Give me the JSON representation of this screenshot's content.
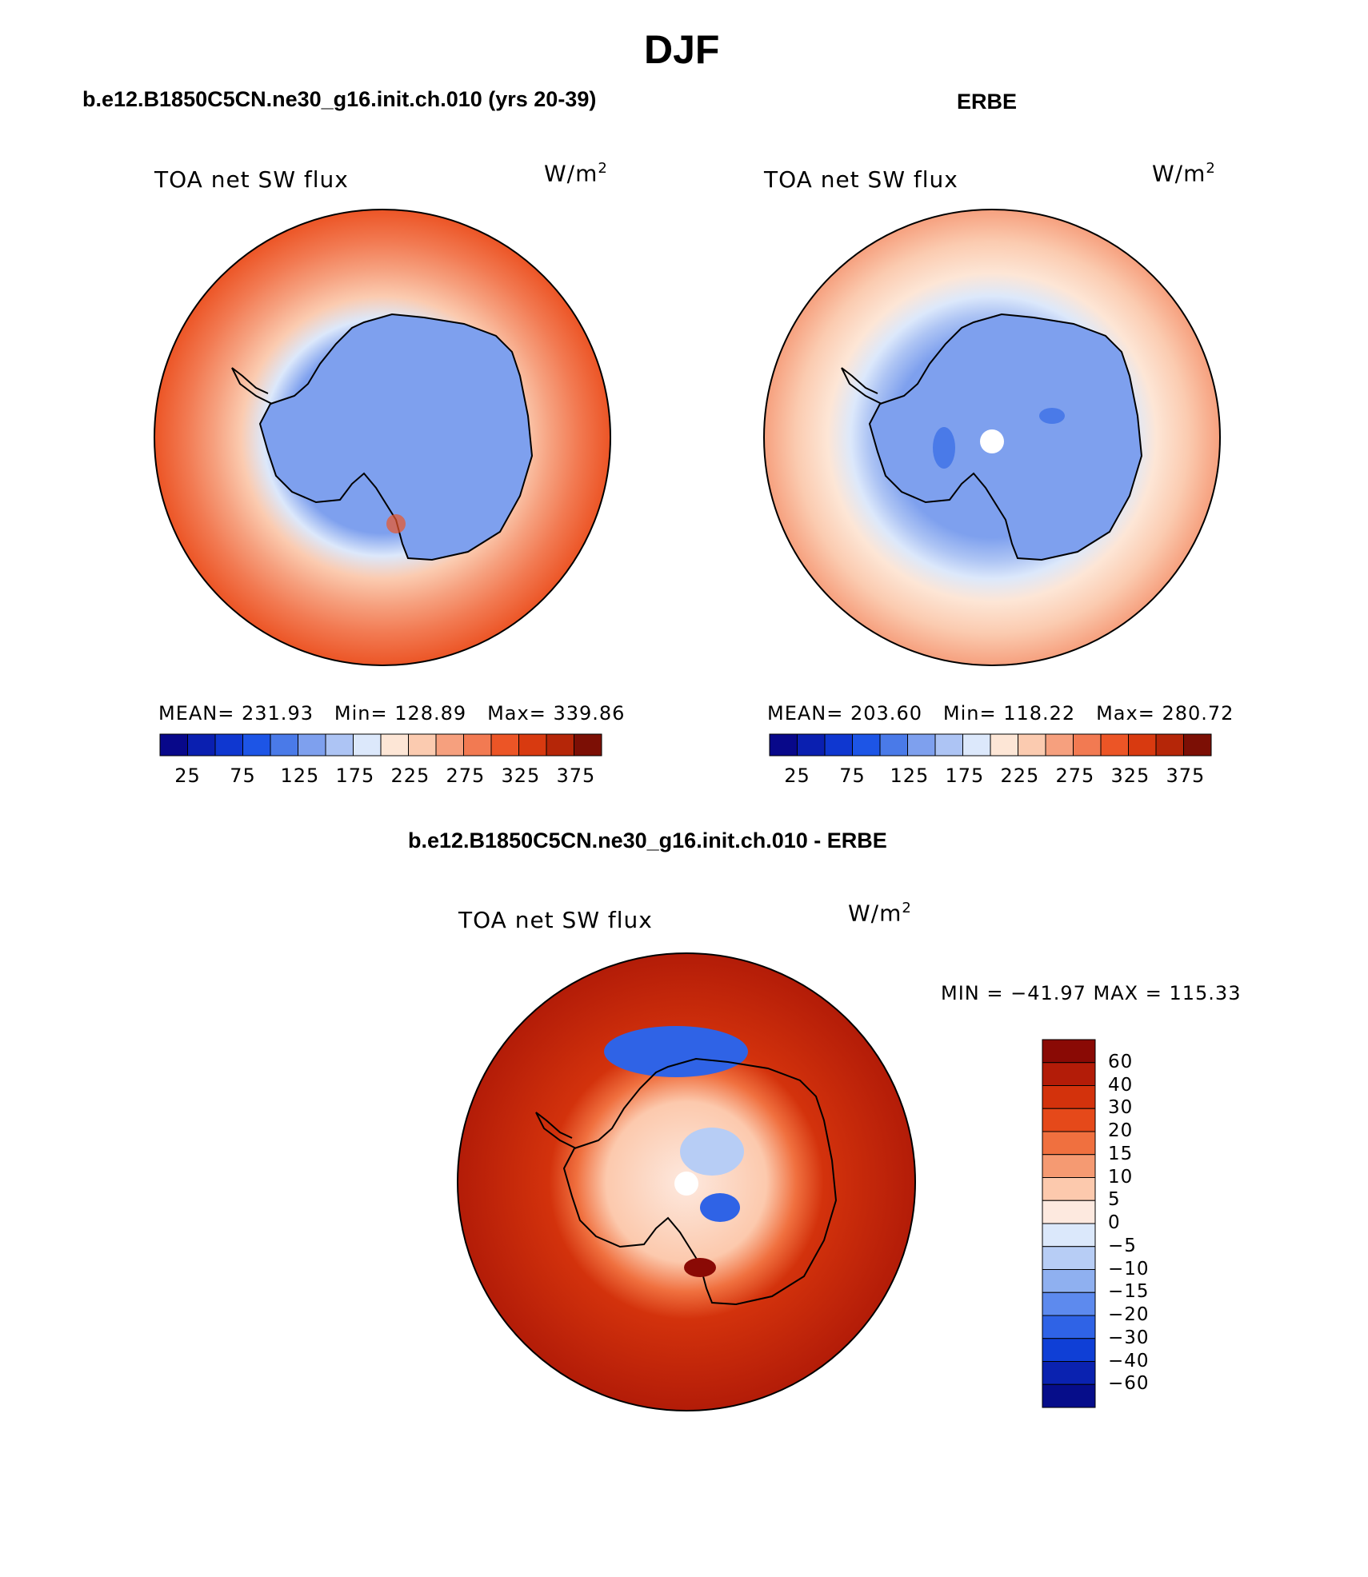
{
  "page_title": "DJF",
  "panels": [
    {
      "case_title": "b.e12.B1850C5CN.ne30_g16.init.ch.010 (yrs 20-39)",
      "variable": "TOA net SW flux",
      "units_base": "W/m",
      "units_exp": "2",
      "stats": {
        "mean_label": "MEAN=",
        "mean": "231.93",
        "min_label": "Min=",
        "min": "128.89",
        "max_label": "Max=",
        "max": "339.86"
      }
    },
    {
      "case_title": "ERBE",
      "variable": "TOA net SW flux",
      "units_base": "W/m",
      "units_exp": "2",
      "stats": {
        "mean_label": "MEAN=",
        "mean": "203.60",
        "min_label": "Min=",
        "min": "118.22",
        "max_label": "Max=",
        "max": "280.72"
      }
    }
  ],
  "abs_colorbar": {
    "colors": [
      "#08088a",
      "#0a1fb0",
      "#0f37d0",
      "#1d55e6",
      "#4a7ae8",
      "#7ea0ee",
      "#adc4f4",
      "#dce8fb",
      "#fde6d6",
      "#fbcbb0",
      "#f6a07e",
      "#f27a52",
      "#ec5526",
      "#d83a10",
      "#b52608",
      "#7c0f05"
    ],
    "tick_labels": [
      "25",
      "75",
      "125",
      "175",
      "225",
      "275",
      "325",
      "375"
    ]
  },
  "diff_panel": {
    "title": "b.e12.B1850C5CN.ne30_g16.init.ch.010 - ERBE",
    "variable": "TOA net SW flux",
    "units_base": "W/m",
    "units_exp": "2",
    "minmax_text": "MIN = −41.97  MAX = 115.33",
    "colorbar": {
      "colors_top_to_bottom": [
        "#8a0a05",
        "#b31c08",
        "#d3320c",
        "#e5491a",
        "#f0703f",
        "#f59a72",
        "#fcc9ad",
        "#fde9df",
        "#dbe8fb",
        "#b7cdf5",
        "#8fb0f0",
        "#5d8aee",
        "#2f63e6",
        "#0f3fd6",
        "#0a22b0",
        "#060d8a"
      ],
      "labels_top_to_bottom": [
        "60",
        "40",
        "30",
        "20",
        "15",
        "10",
        "5",
        "0",
        "−5",
        "−10",
        "−15",
        "−20",
        "−30",
        "−40",
        "−60"
      ]
    }
  }
}
